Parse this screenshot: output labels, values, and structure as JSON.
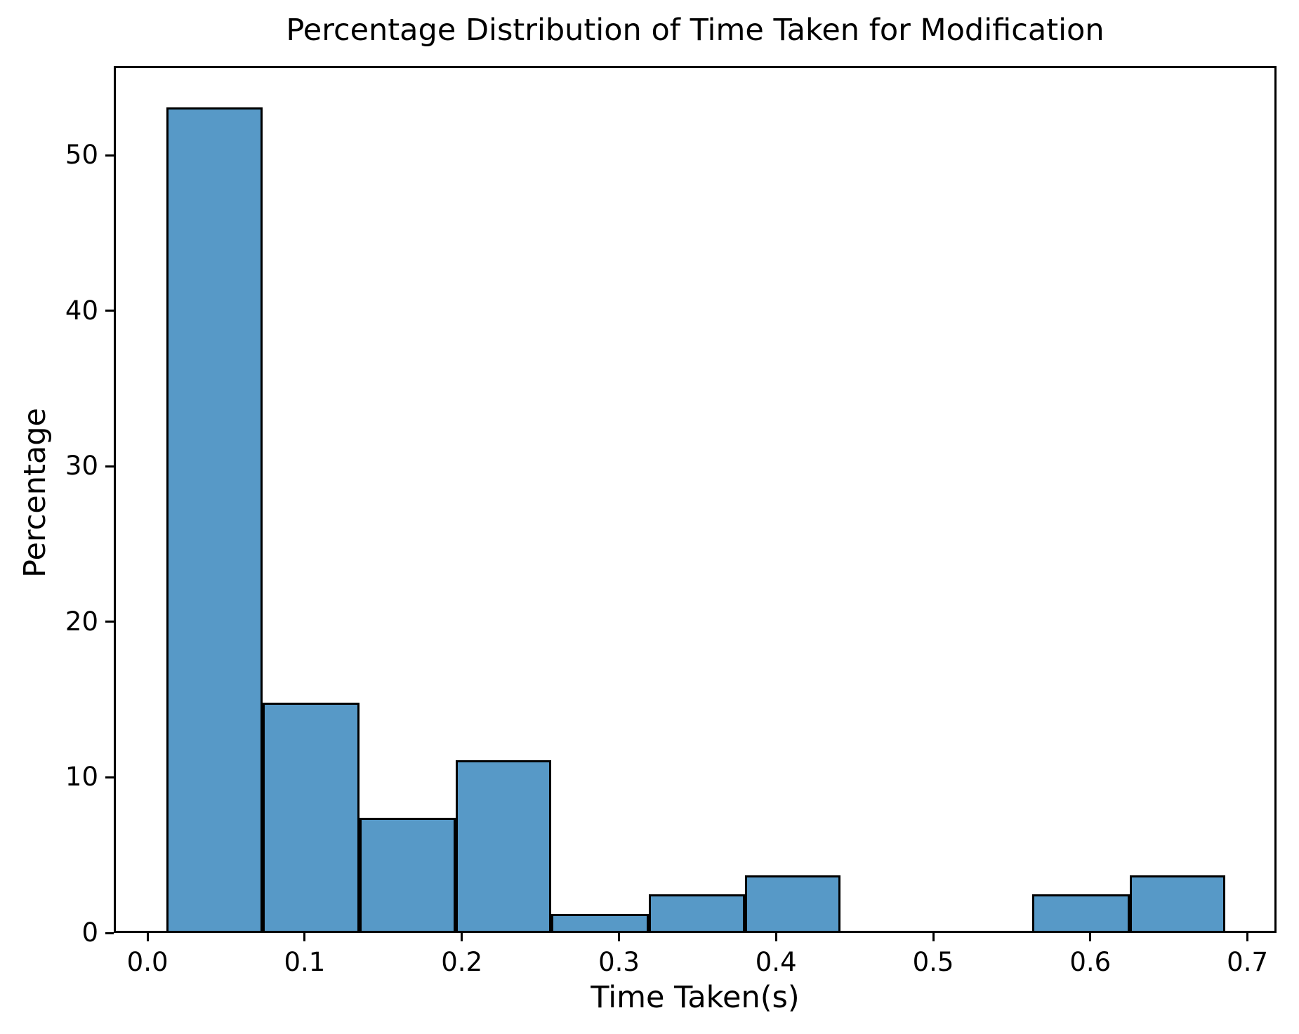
{
  "chart_data": {
    "type": "bar",
    "subtype": "histogram",
    "title": "Percentage Distribution of Time Taken for Modification",
    "xlabel": "Time Taken(s)",
    "ylabel": "Percentage",
    "bin_edges": [
      0.012,
      0.073,
      0.135,
      0.196,
      0.257,
      0.319,
      0.38,
      0.441,
      0.502,
      0.563,
      0.625,
      0.686
    ],
    "values": [
      53.09,
      14.81,
      7.41,
      11.11,
      1.23,
      2.47,
      3.7,
      0,
      0,
      2.47,
      3.7
    ],
    "xlim": [
      -0.0215,
      0.7185
    ],
    "ylim": [
      0,
      55.74
    ],
    "x_ticks": [
      0.0,
      0.1,
      0.2,
      0.3,
      0.4,
      0.5,
      0.6,
      0.7
    ],
    "x_tick_labels": [
      "0.0",
      "0.1",
      "0.2",
      "0.3",
      "0.4",
      "0.5",
      "0.6",
      "0.7"
    ],
    "y_ticks": [
      0,
      10,
      20,
      30,
      40,
      50
    ],
    "y_tick_labels": [
      "0",
      "10",
      "20",
      "30",
      "40",
      "50"
    ],
    "grid": false,
    "legend": "none",
    "colors": {
      "bar_fill": "#5799C7",
      "bar_edge": "#000000",
      "axis": "#000000",
      "text": "#000000",
      "background": "#FFFFFF"
    }
  }
}
